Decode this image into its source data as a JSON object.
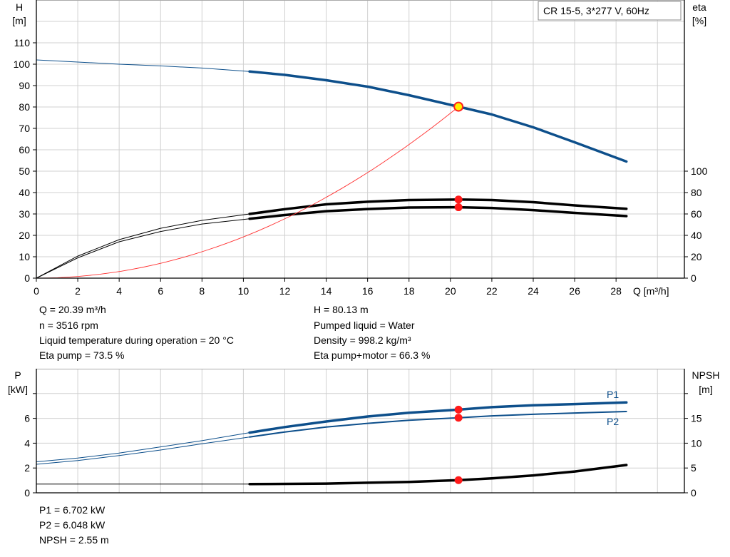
{
  "chart_data": [
    {
      "type": "line",
      "title_box": "CR 15-5, 3*277 V, 60Hz",
      "xlabel": "Q [m³/h]",
      "ylabel_left": [
        "H",
        "[m]"
      ],
      "ylabel_right": [
        "eta",
        "[%]"
      ],
      "xlim": [
        0,
        31.3
      ],
      "xticks": [
        0,
        2,
        4,
        6,
        8,
        10,
        12,
        14,
        16,
        18,
        20,
        22,
        24,
        26,
        28
      ],
      "ylim_left": [
        0,
        130
      ],
      "yticks_left": [
        0,
        10,
        20,
        30,
        40,
        50,
        60,
        70,
        80,
        90,
        100,
        110
      ],
      "ylim_right": [
        0,
        260
      ],
      "yticks_right": [
        0,
        20,
        40,
        60,
        80,
        100
      ],
      "grid": true,
      "thick_from_q": 10.3,
      "series": [
        {
          "id": "head",
          "axis": "left",
          "color": "#0d4f8b",
          "points": [
            [
              0,
              102
            ],
            [
              2,
              101
            ],
            [
              4,
              100
            ],
            [
              6,
              99.2
            ],
            [
              8,
              98.2
            ],
            [
              10.3,
              96.6
            ],
            [
              12,
              95
            ],
            [
              14,
              92.5
            ],
            [
              16,
              89.5
            ],
            [
              18,
              85.5
            ],
            [
              20.39,
              80.13
            ],
            [
              22,
              76.5
            ],
            [
              24,
              70.5
            ],
            [
              26,
              63.5
            ],
            [
              28.5,
              54.5
            ]
          ]
        },
        {
          "id": "eta-pump",
          "axis": "right",
          "color": "#000000",
          "points": [
            [
              0,
              0
            ],
            [
              2,
              20.6
            ],
            [
              4,
              36
            ],
            [
              6,
              46.6
            ],
            [
              8,
              54
            ],
            [
              10.3,
              60
            ],
            [
              12,
              64.5
            ],
            [
              14,
              69
            ],
            [
              16,
              71.4
            ],
            [
              18,
              73
            ],
            [
              20.39,
              73.5
            ],
            [
              22,
              73
            ],
            [
              24,
              71
            ],
            [
              26,
              68
            ],
            [
              28.5,
              64.8
            ]
          ]
        },
        {
          "id": "eta-pump-motor",
          "axis": "right",
          "color": "#000000",
          "points": [
            [
              0,
              0
            ],
            [
              2,
              19
            ],
            [
              4,
              34
            ],
            [
              6,
              43.6
            ],
            [
              8,
              50.6
            ],
            [
              10.3,
              55.5
            ],
            [
              12,
              59
            ],
            [
              14,
              62.6
            ],
            [
              16,
              64.6
            ],
            [
              18,
              66
            ],
            [
              20.39,
              66.3
            ],
            [
              22,
              65.6
            ],
            [
              24,
              63.6
            ],
            [
              26,
              61
            ],
            [
              28.5,
              58
            ]
          ]
        },
        {
          "id": "system-curve",
          "axis": "left",
          "color": "#ff3030",
          "type": "quadratic",
          "k": 0.1927,
          "q_max": 20.39
        }
      ],
      "operating_point": {
        "Q": 20.39,
        "H": 80.13,
        "eta_pump": 73.5,
        "eta_pump_motor": 66.3
      }
    },
    {
      "type": "line",
      "ylabel_left": [
        "P",
        "[kW]"
      ],
      "ylabel_right": [
        "NPSH",
        "[m]"
      ],
      "xlim": [
        0,
        31.3
      ],
      "ylim_left": [
        0,
        10
      ],
      "yticks_left": [
        0,
        2,
        4,
        6,
        8
      ],
      "yticklabels_left": [
        "0",
        "2",
        "4",
        "6",
        ""
      ],
      "ylim_right": [
        0,
        25
      ],
      "yticks_right": [
        0,
        5,
        10,
        15,
        20
      ],
      "yticklabels_right": [
        "0",
        "5",
        "10",
        "15",
        ""
      ],
      "grid": true,
      "thick_from_q": 10.3,
      "series": [
        {
          "id": "P1",
          "name": "P1",
          "axis": "left",
          "color": "#0d4f8b",
          "width": 3.5,
          "points": [
            [
              0,
              2.5
            ],
            [
              2,
              2.8
            ],
            [
              4,
              3.2
            ],
            [
              6,
              3.7
            ],
            [
              8,
              4.2
            ],
            [
              10.3,
              4.85
            ],
            [
              12,
              5.3
            ],
            [
              14,
              5.75
            ],
            [
              16,
              6.15
            ],
            [
              18,
              6.45
            ],
            [
              20.39,
              6.702
            ],
            [
              22,
              6.9
            ],
            [
              24,
              7.05
            ],
            [
              26,
              7.15
            ],
            [
              28.5,
              7.28
            ]
          ]
        },
        {
          "id": "P2",
          "name": "P2",
          "axis": "left",
          "color": "#0d4f8b",
          "width": 2,
          "points": [
            [
              0,
              2.3
            ],
            [
              2,
              2.6
            ],
            [
              4,
              3.0
            ],
            [
              6,
              3.45
            ],
            [
              8,
              3.95
            ],
            [
              10.3,
              4.5
            ],
            [
              12,
              4.9
            ],
            [
              14,
              5.3
            ],
            [
              16,
              5.6
            ],
            [
              18,
              5.85
            ],
            [
              20.39,
              6.048
            ],
            [
              22,
              6.2
            ],
            [
              24,
              6.33
            ],
            [
              26,
              6.43
            ],
            [
              28.5,
              6.55
            ]
          ]
        },
        {
          "id": "NPSH",
          "axis": "right",
          "color": "#000000",
          "width": 3.5,
          "points": [
            [
              0,
              1.75
            ],
            [
              10.3,
              1.75
            ],
            [
              14,
              1.85
            ],
            [
              18,
              2.2
            ],
            [
              20.39,
              2.55
            ],
            [
              22,
              2.9
            ],
            [
              24,
              3.5
            ],
            [
              26,
              4.3
            ],
            [
              28.5,
              5.6
            ]
          ]
        }
      ],
      "operating_point": {
        "Q": 20.39,
        "P1": 6.702,
        "P2": 6.048,
        "NPSH": 2.55
      }
    }
  ],
  "info_top": {
    "left": [
      "Q = 20.39 m³/h",
      "n = 3516 rpm",
      "Liquid temperature during operation = 20 °C",
      "Eta pump = 73.5 %"
    ],
    "right": [
      "H = 80.13 m",
      "Pumped liquid = Water",
      "Density = 998.2 kg/m³",
      "Eta pump+motor = 66.3 %"
    ]
  },
  "info_bottom": [
    "P1 = 6.702 kW",
    "P2 = 6.048 kW",
    "NPSH = 2.55 m"
  ]
}
